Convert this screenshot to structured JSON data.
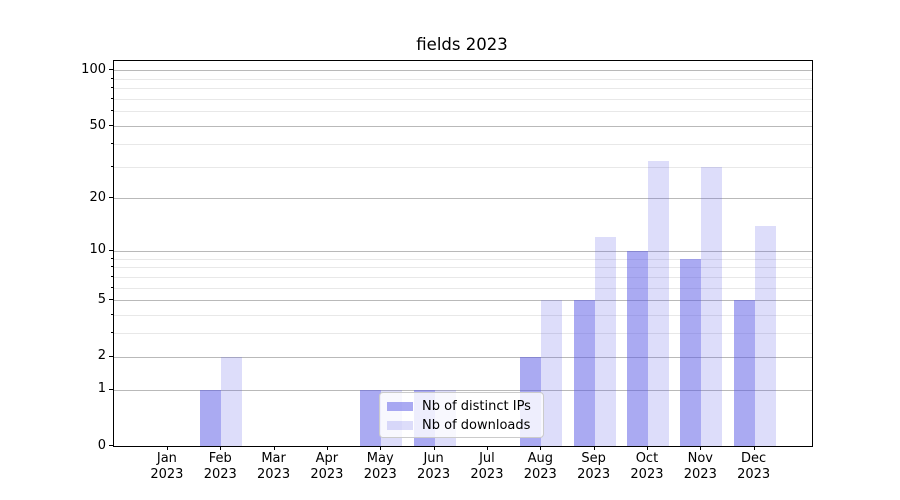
{
  "chart_data": {
    "type": "bar",
    "title": "fields 2023",
    "categories": [
      "Jan",
      "Feb",
      "Mar",
      "Apr",
      "May",
      "Jun",
      "Jul",
      "Aug",
      "Sep",
      "Oct",
      "Nov",
      "Dec"
    ],
    "category_year": "2023",
    "series": [
      {
        "name": "Nb of distinct IPs",
        "color": "rgba(85,85,230,0.5)",
        "values": [
          0,
          1,
          0,
          0,
          1,
          1,
          0,
          2,
          5,
          10,
          9,
          5
        ]
      },
      {
        "name": "Nb of downloads",
        "color": "rgba(85,85,230,0.2)",
        "values": [
          0,
          2,
          0,
          0,
          1,
          1,
          0,
          5,
          12,
          32,
          30,
          14
        ]
      }
    ],
    "xlabel": "",
    "ylabel": "",
    "yscale": "log(1+y)",
    "ylim": [
      0,
      112
    ],
    "yticks": [
      0,
      1,
      2,
      5,
      10,
      20,
      50,
      100
    ],
    "minor_gridlines": [
      3,
      4,
      6,
      7,
      8,
      9,
      30,
      40,
      60,
      70,
      80,
      90
    ],
    "grid": "on",
    "legend_position": "inside lower-center"
  },
  "colors": {
    "bar_distinct_ips": "rgba(85,85,230,0.5)",
    "bar_downloads": "rgba(85,85,230,0.2)",
    "grid_major": "#b9b9b9",
    "grid_minor": "#e8e8e8",
    "spine": "#000000",
    "background": "#ffffff"
  }
}
